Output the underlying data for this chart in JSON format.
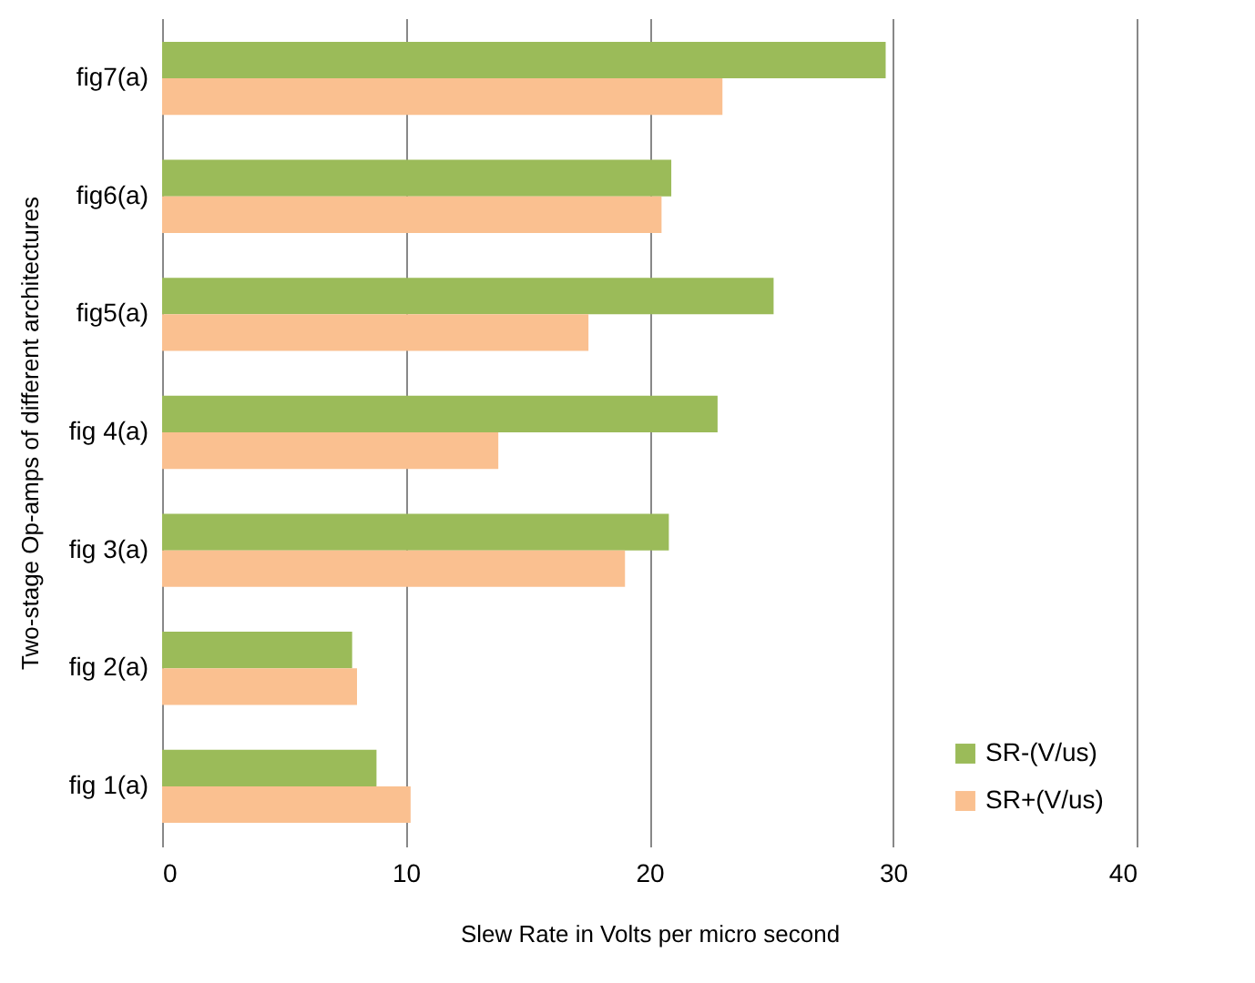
{
  "chart_data": {
    "type": "bar",
    "orientation": "horizontal",
    "xlabel": "Slew Rate in Volts per micro second",
    "ylabel": "Two-stage  Op-amps of  different architectures",
    "categories": [
      "fig7(a)",
      "fig6(a)",
      "fig5(a)",
      "fig 4(a)",
      "fig 3(a)",
      "fig 2(a)",
      "fig 1(a)"
    ],
    "series": [
      {
        "name": "SR-(V/us)",
        "color": "#9bbb59",
        "values": [
          29.7,
          20.9,
          25.1,
          22.8,
          20.8,
          7.8,
          8.8
        ]
      },
      {
        "name": "SR+(V/us)",
        "color": "#fac090",
        "values": [
          23.0,
          20.5,
          17.5,
          13.8,
          19.0,
          8.0,
          10.2
        ]
      }
    ],
    "xlim": [
      0,
      40
    ],
    "xticks": [
      0,
      10,
      20,
      30,
      40
    ],
    "grid": "x",
    "legend": "bottom right"
  }
}
